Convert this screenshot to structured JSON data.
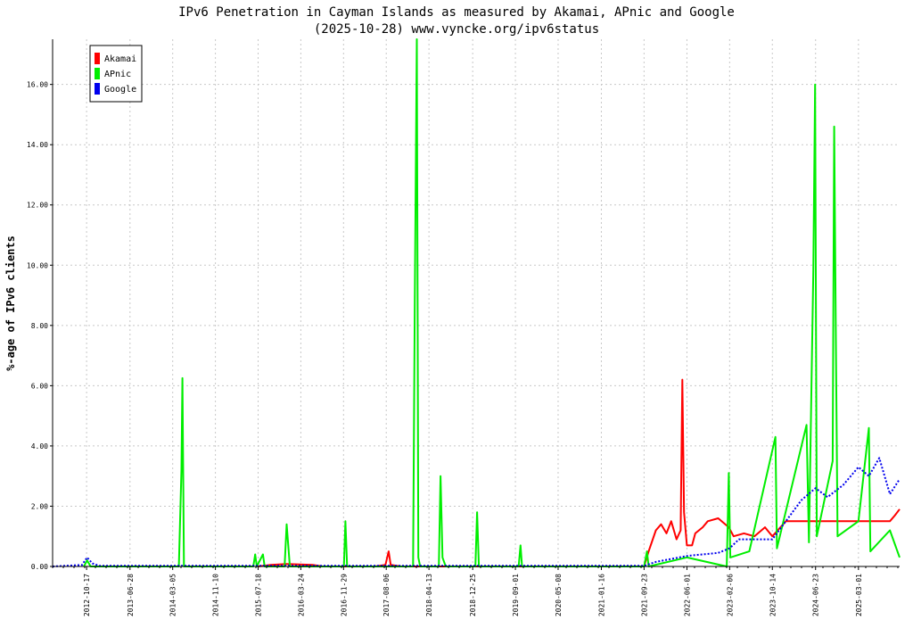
{
  "chart_data": {
    "type": "line",
    "title": "IPv6 Penetration in Cayman Islands as measured by Akamai, APnic and Google",
    "subtitle": "(2025-10-28) www.vyncke.org/ipv6status",
    "ylabel": "%-age of IPv6 clients",
    "xlabel": "",
    "ylim": [
      0,
      17.5
    ],
    "y_ticks": [
      "0.00",
      "2.00",
      "4.00",
      "6.00",
      "8.00",
      "10.00",
      "12.00",
      "14.00",
      "16.00"
    ],
    "x_ticks": [
      "2012-10-17",
      "2013-06-28",
      "2014-03-05",
      "2014-11-10",
      "2015-07-18",
      "2016-03-24",
      "2016-11-29",
      "2017-08-06",
      "2018-04-13",
      "2018-12-25",
      "2019-09-01",
      "2020-05-08",
      "2021-01-16",
      "2021-09-23",
      "2022-06-01",
      "2023-02-06",
      "2023-10-14",
      "2024-06-23",
      "2025-03-01"
    ],
    "x_range": [
      "2012-04-01",
      "2025-10-28"
    ],
    "grid": true,
    "legend_position": "top-left",
    "series": [
      {
        "name": "Akamai",
        "color": "#ff0000",
        "style": "solid",
        "points": [
          [
            "2015-07-18",
            0.0
          ],
          [
            "2015-10-01",
            0.05
          ],
          [
            "2016-01-01",
            0.08
          ],
          [
            "2016-06-01",
            0.05
          ],
          [
            "2016-08-01",
            0.0
          ],
          [
            "2017-06-01",
            0.0
          ],
          [
            "2017-08-01",
            0.05
          ],
          [
            "2017-08-20",
            0.5
          ],
          [
            "2017-09-01",
            0.05
          ],
          [
            "2017-11-01",
            0.0
          ],
          [
            "2021-09-23",
            0.0
          ],
          [
            "2021-10-20",
            0.5
          ],
          [
            "2021-12-01",
            1.2
          ],
          [
            "2022-01-01",
            1.4
          ],
          [
            "2022-02-01",
            1.1
          ],
          [
            "2022-03-01",
            1.5
          ],
          [
            "2022-04-01",
            0.9
          ],
          [
            "2022-04-25",
            1.2
          ],
          [
            "2022-05-05",
            6.2
          ],
          [
            "2022-05-15",
            1.8
          ],
          [
            "2022-06-01",
            0.7
          ],
          [
            "2022-07-01",
            0.7
          ],
          [
            "2022-07-20",
            1.1
          ],
          [
            "2022-09-01",
            1.3
          ],
          [
            "2022-10-01",
            1.5
          ],
          [
            "2022-12-01",
            1.6
          ],
          [
            "2023-02-01",
            1.3
          ],
          [
            "2023-03-01",
            1.0
          ],
          [
            "2023-05-01",
            1.1
          ],
          [
            "2023-07-01",
            1.0
          ],
          [
            "2023-09-01",
            1.3
          ],
          [
            "2023-10-14",
            1.0
          ],
          [
            "2024-01-01",
            1.5
          ],
          [
            "2025-09-01",
            1.5
          ],
          [
            "2025-10-01",
            1.7
          ],
          [
            "2025-10-28",
            1.9
          ]
        ]
      },
      {
        "name": "APnic",
        "color": "#00ee00",
        "style": "solid",
        "points": [
          [
            "2012-10-01",
            0.0
          ],
          [
            "2012-10-20",
            0.2
          ],
          [
            "2012-11-10",
            0.0
          ],
          [
            "2014-04-10",
            0.0
          ],
          [
            "2014-04-25",
            3.2
          ],
          [
            "2014-05-01",
            6.25
          ],
          [
            "2014-05-10",
            0.0
          ],
          [
            "2015-06-20",
            0.0
          ],
          [
            "2015-07-01",
            0.4
          ],
          [
            "2015-07-10",
            0.0
          ],
          [
            "2015-08-15",
            0.4
          ],
          [
            "2015-08-25",
            0.0
          ],
          [
            "2015-12-20",
            0.0
          ],
          [
            "2016-01-01",
            1.4
          ],
          [
            "2016-01-20",
            0.0
          ],
          [
            "2016-12-01",
            0.0
          ],
          [
            "2016-12-10",
            1.5
          ],
          [
            "2016-12-20",
            0.0
          ],
          [
            "2018-01-10",
            0.0
          ],
          [
            "2018-01-20",
            8.7
          ],
          [
            "2018-02-01",
            17.5
          ],
          [
            "2018-02-10",
            0.3
          ],
          [
            "2018-02-20",
            0.0
          ],
          [
            "2018-06-10",
            0.0
          ],
          [
            "2018-06-20",
            3.0
          ],
          [
            "2018-07-01",
            0.3
          ],
          [
            "2018-07-20",
            0.0
          ],
          [
            "2019-01-10",
            0.0
          ],
          [
            "2019-01-20",
            1.8
          ],
          [
            "2019-01-30",
            0.0
          ],
          [
            "2019-09-20",
            0.0
          ],
          [
            "2019-10-01",
            0.7
          ],
          [
            "2019-10-10",
            0.0
          ],
          [
            "2021-09-23",
            0.0
          ],
          [
            "2021-10-10",
            0.5
          ],
          [
            "2021-10-20",
            0.0
          ],
          [
            "2022-06-01",
            0.3
          ],
          [
            "2023-01-20",
            0.0
          ],
          [
            "2023-02-01",
            3.1
          ],
          [
            "2023-02-10",
            0.3
          ],
          [
            "2023-06-01",
            0.5
          ],
          [
            "2023-11-01",
            4.3
          ],
          [
            "2023-11-10",
            0.6
          ],
          [
            "2024-05-01",
            4.7
          ],
          [
            "2024-05-15",
            0.8
          ],
          [
            "2024-06-10",
            9.8
          ],
          [
            "2024-06-20",
            16.0
          ],
          [
            "2024-06-30",
            1.0
          ],
          [
            "2024-10-01",
            3.5
          ],
          [
            "2024-10-10",
            14.6
          ],
          [
            "2024-10-20",
            7.5
          ],
          [
            "2024-10-30",
            1.0
          ],
          [
            "2025-03-01",
            1.5
          ],
          [
            "2025-05-01",
            4.6
          ],
          [
            "2025-05-10",
            0.5
          ],
          [
            "2025-09-01",
            1.2
          ],
          [
            "2025-10-28",
            0.3
          ]
        ]
      },
      {
        "name": "Google",
        "color": "#0000ee",
        "style": "dotted",
        "points": [
          [
            "2012-04-01",
            0.0
          ],
          [
            "2012-09-20",
            0.05
          ],
          [
            "2012-10-20",
            0.3
          ],
          [
            "2012-11-20",
            0.1
          ],
          [
            "2013-01-01",
            0.02
          ],
          [
            "2021-09-23",
            0.02
          ],
          [
            "2021-12-01",
            0.15
          ],
          [
            "2022-06-01",
            0.35
          ],
          [
            "2022-12-01",
            0.45
          ],
          [
            "2023-02-06",
            0.6
          ],
          [
            "2023-04-01",
            0.9
          ],
          [
            "2023-10-14",
            0.9
          ],
          [
            "2024-01-01",
            1.5
          ],
          [
            "2024-04-01",
            2.2
          ],
          [
            "2024-06-23",
            2.6
          ],
          [
            "2024-09-01",
            2.3
          ],
          [
            "2024-12-01",
            2.7
          ],
          [
            "2025-03-01",
            3.3
          ],
          [
            "2025-05-01",
            3.0
          ],
          [
            "2025-07-01",
            3.6
          ],
          [
            "2025-09-01",
            2.4
          ],
          [
            "2025-10-28",
            2.9
          ]
        ]
      }
    ]
  }
}
